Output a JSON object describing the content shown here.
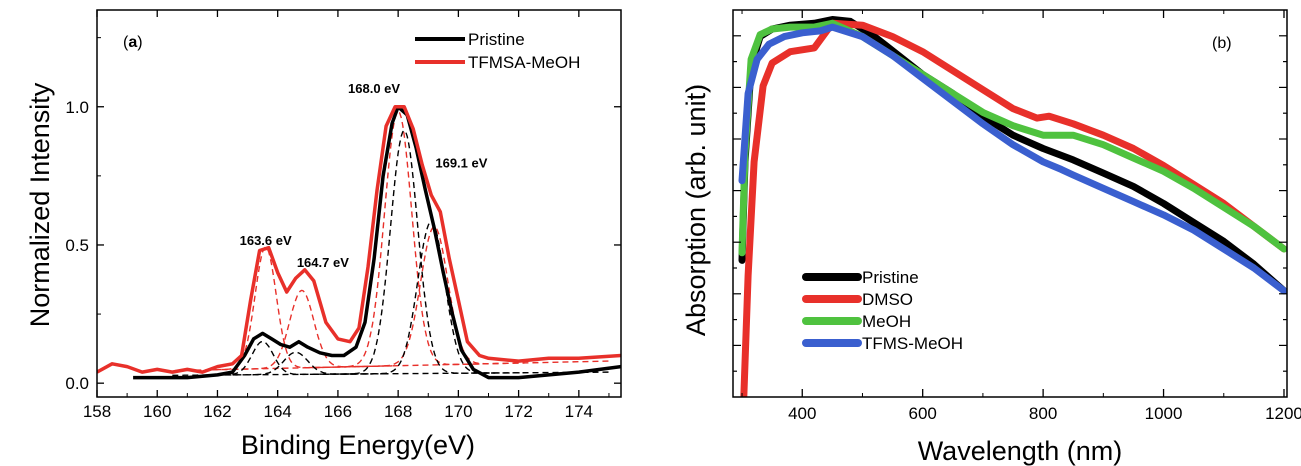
{
  "chart_data": [
    {
      "type": "line",
      "panel_label_open": "(",
      "panel_label_letter": "a",
      "panel_label_close": ")",
      "xlabel": "Binding Energy(eV)",
      "ylabel": "Normalized Intensity",
      "xlim": [
        158,
        175.4
      ],
      "ylim": [
        -0.05,
        1.35
      ],
      "xticks": [
        158,
        160,
        162,
        164,
        166,
        168,
        170,
        172,
        174
      ],
      "yticks": [
        0.0,
        0.5,
        1.0
      ],
      "ytick_labels": [
        "0.0",
        "0.5",
        "1.0"
      ],
      "legend_position": "top-right",
      "series": [
        {
          "name": "Pristine",
          "color": "#000000",
          "points": [
            [
              159.2,
              0.02
            ],
            [
              160,
              0.02
            ],
            [
              161,
              0.02
            ],
            [
              162,
              0.03
            ],
            [
              162.5,
              0.04
            ],
            [
              162.9,
              0.1
            ],
            [
              163.2,
              0.16
            ],
            [
              163.5,
              0.18
            ],
            [
              163.8,
              0.16
            ],
            [
              164.1,
              0.14
            ],
            [
              164.4,
              0.13
            ],
            [
              164.7,
              0.15
            ],
            [
              165.0,
              0.13
            ],
            [
              165.4,
              0.11
            ],
            [
              165.8,
              0.1
            ],
            [
              166.2,
              0.1
            ],
            [
              166.6,
              0.13
            ],
            [
              166.9,
              0.22
            ],
            [
              167.2,
              0.45
            ],
            [
              167.5,
              0.75
            ],
            [
              167.8,
              0.94
            ],
            [
              168.0,
              1.0
            ],
            [
              168.3,
              0.97
            ],
            [
              168.6,
              0.85
            ],
            [
              168.9,
              0.7
            ],
            [
              169.2,
              0.56
            ],
            [
              169.5,
              0.4
            ],
            [
              169.8,
              0.25
            ],
            [
              170.1,
              0.12
            ],
            [
              170.5,
              0.05
            ],
            [
              171,
              0.02
            ],
            [
              172,
              0.02
            ],
            [
              173,
              0.03
            ],
            [
              174,
              0.04
            ],
            [
              175.4,
              0.06
            ]
          ]
        },
        {
          "name": "TFMSA-MeOH",
          "color": "#e8302a",
          "points": [
            [
              158,
              0.04
            ],
            [
              158.5,
              0.07
            ],
            [
              159,
              0.06
            ],
            [
              159.5,
              0.04
            ],
            [
              160,
              0.05
            ],
            [
              160.5,
              0.04
            ],
            [
              161,
              0.05
            ],
            [
              161.5,
              0.04
            ],
            [
              162,
              0.06
            ],
            [
              162.5,
              0.07
            ],
            [
              162.8,
              0.1
            ],
            [
              163.1,
              0.3
            ],
            [
              163.4,
              0.48
            ],
            [
              163.7,
              0.49
            ],
            [
              164.0,
              0.4
            ],
            [
              164.3,
              0.33
            ],
            [
              164.6,
              0.38
            ],
            [
              164.9,
              0.41
            ],
            [
              165.2,
              0.37
            ],
            [
              165.6,
              0.22
            ],
            [
              166.0,
              0.16
            ],
            [
              166.4,
              0.15
            ],
            [
              166.7,
              0.2
            ],
            [
              167.0,
              0.42
            ],
            [
              167.3,
              0.7
            ],
            [
              167.6,
              0.93
            ],
            [
              167.9,
              1.0
            ],
            [
              168.2,
              1.0
            ],
            [
              168.5,
              0.92
            ],
            [
              168.8,
              0.79
            ],
            [
              169.1,
              0.68
            ],
            [
              169.4,
              0.62
            ],
            [
              169.7,
              0.45
            ],
            [
              170.0,
              0.3
            ],
            [
              170.3,
              0.15
            ],
            [
              170.7,
              0.1
            ],
            [
              171,
              0.09
            ],
            [
              172,
              0.08
            ],
            [
              173,
              0.09
            ],
            [
              174,
              0.09
            ],
            [
              175.4,
              0.1
            ]
          ]
        }
      ],
      "fit_components": [
        {
          "color": "#e8302a",
          "center": 163.6,
          "height": 0.44,
          "width": 0.35
        },
        {
          "color": "#e8302a",
          "center": 164.8,
          "height": 0.28,
          "width": 0.4
        },
        {
          "color": "#e8302a",
          "center": 168.0,
          "height": 0.92,
          "width": 0.45
        },
        {
          "color": "#e8302a",
          "center": 169.2,
          "height": 0.5,
          "width": 0.45
        },
        {
          "color": "#000000",
          "center": 163.5,
          "height": 0.12,
          "width": 0.35
        },
        {
          "color": "#000000",
          "center": 164.6,
          "height": 0.08,
          "width": 0.4
        },
        {
          "color": "#000000",
          "center": 168.2,
          "height": 0.88,
          "width": 0.45
        },
        {
          "color": "#000000",
          "center": 169.1,
          "height": 0.55,
          "width": 0.45
        }
      ],
      "baselines": [
        {
          "color": "#e8302a",
          "from": [
            162.5,
            0.05
          ],
          "to": [
            175,
            0.08
          ]
        },
        {
          "color": "#000000",
          "from": [
            162.5,
            0.03
          ],
          "to": [
            175,
            0.04
          ]
        }
      ],
      "annotations": [
        {
          "text": "163.6 eV",
          "x": 163.6,
          "y": 0.5
        },
        {
          "text": "164.7 eV",
          "x": 165.5,
          "y": 0.42
        },
        {
          "text": "168.0 eV",
          "x": 167.2,
          "y": 1.05
        },
        {
          "text": "169.1 eV",
          "x": 170.1,
          "y": 0.78
        }
      ]
    },
    {
      "type": "line",
      "panel_label": "(b)",
      "xlabel": "Wavelength (nm)",
      "ylabel": "Absorption (arb. unit)",
      "xlim": [
        285,
        1205
      ],
      "ylim": [
        -0.02,
        1.0
      ],
      "xticks": [
        400,
        600,
        800,
        1000,
        1200
      ],
      "yticks_unlabeled": true,
      "legend_position": "bottom-left",
      "series": [
        {
          "name": "Pristine",
          "color": "#000000",
          "points": [
            [
              300,
              0.34
            ],
            [
              305,
              0.6
            ],
            [
              315,
              0.85
            ],
            [
              330,
              0.93
            ],
            [
              350,
              0.95
            ],
            [
              380,
              0.96
            ],
            [
              420,
              0.965
            ],
            [
              450,
              0.975
            ],
            [
              480,
              0.97
            ],
            [
              520,
              0.93
            ],
            [
              560,
              0.88
            ],
            [
              600,
              0.83
            ],
            [
              650,
              0.78
            ],
            [
              700,
              0.72
            ],
            [
              750,
              0.67
            ],
            [
              800,
              0.635
            ],
            [
              850,
              0.605
            ],
            [
              900,
              0.57
            ],
            [
              950,
              0.535
            ],
            [
              1000,
              0.49
            ],
            [
              1050,
              0.44
            ],
            [
              1100,
              0.39
            ],
            [
              1150,
              0.33
            ],
            [
              1200,
              0.26
            ]
          ]
        },
        {
          "name": "DMSO",
          "color": "#e8302a",
          "points": [
            [
              303,
              -0.02
            ],
            [
              310,
              0.3
            ],
            [
              320,
              0.6
            ],
            [
              335,
              0.8
            ],
            [
              350,
              0.86
            ],
            [
              380,
              0.89
            ],
            [
              420,
              0.9
            ],
            [
              450,
              0.965
            ],
            [
              500,
              0.96
            ],
            [
              550,
              0.93
            ],
            [
              600,
              0.89
            ],
            [
              650,
              0.84
            ],
            [
              700,
              0.79
            ],
            [
              750,
              0.74
            ],
            [
              790,
              0.715
            ],
            [
              810,
              0.72
            ],
            [
              850,
              0.7
            ],
            [
              900,
              0.67
            ],
            [
              950,
              0.635
            ],
            [
              1000,
              0.59
            ],
            [
              1050,
              0.54
            ],
            [
              1100,
              0.49
            ],
            [
              1150,
              0.43
            ],
            [
              1200,
              0.37
            ]
          ]
        },
        {
          "name": "MeOH",
          "color": "#4fc23f",
          "points": [
            [
              300,
              0.36
            ],
            [
              305,
              0.62
            ],
            [
              315,
              0.87
            ],
            [
              330,
              0.935
            ],
            [
              350,
              0.95
            ],
            [
              380,
              0.955
            ],
            [
              420,
              0.955
            ],
            [
              450,
              0.965
            ],
            [
              500,
              0.93
            ],
            [
              550,
              0.88
            ],
            [
              600,
              0.83
            ],
            [
              650,
              0.78
            ],
            [
              700,
              0.73
            ],
            [
              750,
              0.695
            ],
            [
              800,
              0.67
            ],
            [
              850,
              0.67
            ],
            [
              900,
              0.645
            ],
            [
              950,
              0.61
            ],
            [
              1000,
              0.575
            ],
            [
              1050,
              0.53
            ],
            [
              1100,
              0.48
            ],
            [
              1150,
              0.43
            ],
            [
              1200,
              0.37
            ]
          ]
        },
        {
          "name": "TFMS-MeOH",
          "color": "#3a5fcf",
          "points": [
            [
              300,
              0.55
            ],
            [
              310,
              0.78
            ],
            [
              325,
              0.87
            ],
            [
              345,
              0.91
            ],
            [
              370,
              0.93
            ],
            [
              400,
              0.94
            ],
            [
              430,
              0.945
            ],
            [
              450,
              0.955
            ],
            [
              500,
              0.93
            ],
            [
              550,
              0.88
            ],
            [
              600,
              0.82
            ],
            [
              650,
              0.76
            ],
            [
              700,
              0.7
            ],
            [
              750,
              0.645
            ],
            [
              800,
              0.6
            ],
            [
              830,
              0.58
            ],
            [
              850,
              0.565
            ],
            [
              900,
              0.53
            ],
            [
              950,
              0.495
            ],
            [
              1000,
              0.46
            ],
            [
              1050,
              0.42
            ],
            [
              1100,
              0.37
            ],
            [
              1150,
              0.32
            ],
            [
              1200,
              0.26
            ]
          ]
        }
      ]
    }
  ]
}
